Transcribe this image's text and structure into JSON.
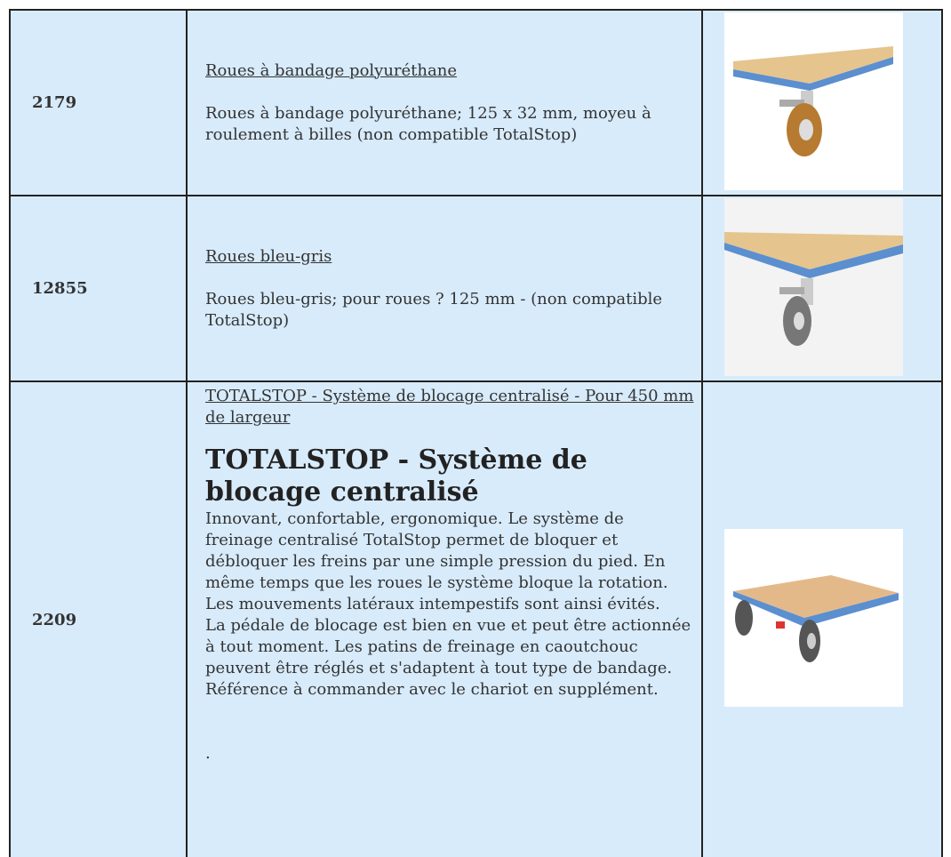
{
  "table": {
    "rows": [
      {
        "ref": "2179",
        "link": "Roues à bandage polyuréthane",
        "description": "Roues à bandage polyuréthane; 125 x 32 mm, moyeu à roulement à billes (non compatible TotalStop)"
      },
      {
        "ref": "12855",
        "link": "Roues bleu-gris",
        "description": "Roues bleu-gris; pour roues ? 125 mm - (non compatible TotalStop)"
      },
      {
        "ref": "2209",
        "link": "TOTALSTOP - Système de blocage centralisé - Pour 450 mm de largeur",
        "heading": "TOTALSTOP - Système de blocage centralisé",
        "paragraphs": [
          "Innovant, confortable, ergonomique. Le système de freinage centralisé TotalStop permet de bloquer et débloquer les freins par une simple pression du pied. En même temps que les roues le système bloque la rotation. Les mouvements latéraux intempestifs sont ainsi évités.",
          "La pédale de blocage est bien en vue et peut être actionnée à tout moment. Les patins de freinage en caoutchouc peuvent être réglés et s'adaptent à tout type de bandage.",
          "Référence à commander avec le chariot en supplément.",
          "."
        ]
      }
    ]
  }
}
